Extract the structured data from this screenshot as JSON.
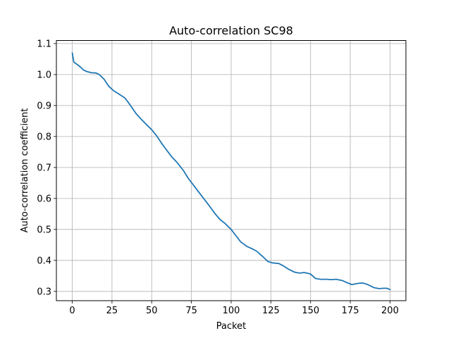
{
  "chart_data": {
    "type": "line",
    "title": "Auto-correlation SC98",
    "xlabel": "Packet",
    "ylabel": "Auto-correlation coefficient",
    "xlim": [
      -10,
      210
    ],
    "ylim": [
      0.27,
      1.11
    ],
    "xticks": [
      0,
      25,
      50,
      75,
      100,
      125,
      150,
      175,
      200
    ],
    "yticks": [
      0.3,
      0.4,
      0.5,
      0.6,
      0.7,
      0.8,
      0.9,
      1.0,
      1.1
    ],
    "ytick_labels": [
      "0.3",
      "0.4",
      "0.5",
      "0.6",
      "0.7",
      "0.8",
      "0.9",
      "1.0",
      "1.1"
    ],
    "grid": true,
    "line_color": "#1f77b4",
    "series": [
      {
        "x": [
          0,
          1,
          3,
          5,
          7,
          9,
          12,
          15,
          17,
          20,
          23,
          26,
          30,
          33,
          35,
          38,
          40,
          43,
          46,
          50,
          53,
          56,
          60,
          63,
          66,
          70,
          73,
          76,
          80,
          83,
          86,
          90,
          93,
          96,
          100,
          103,
          106,
          110,
          113,
          116,
          120,
          123,
          126,
          130,
          133,
          136,
          140,
          143,
          146,
          150,
          153,
          156,
          160,
          163,
          166,
          170,
          173,
          176,
          180,
          183,
          186,
          190,
          193,
          196,
          198,
          200
        ],
        "y": [
          1.07,
          1.04,
          1.033,
          1.025,
          1.015,
          1.01,
          1.006,
          1.005,
          1.0,
          0.985,
          0.962,
          0.948,
          0.935,
          0.925,
          0.912,
          0.89,
          0.875,
          0.858,
          0.842,
          0.822,
          0.803,
          0.78,
          0.752,
          0.732,
          0.716,
          0.69,
          0.665,
          0.645,
          0.618,
          0.598,
          0.578,
          0.55,
          0.532,
          0.52,
          0.5,
          0.48,
          0.46,
          0.445,
          0.438,
          0.43,
          0.412,
          0.397,
          0.392,
          0.39,
          0.382,
          0.372,
          0.362,
          0.359,
          0.361,
          0.356,
          0.342,
          0.339,
          0.339,
          0.338,
          0.339,
          0.335,
          0.328,
          0.322,
          0.326,
          0.327,
          0.322,
          0.312,
          0.309,
          0.31,
          0.31,
          0.306
        ]
      }
    ]
  }
}
